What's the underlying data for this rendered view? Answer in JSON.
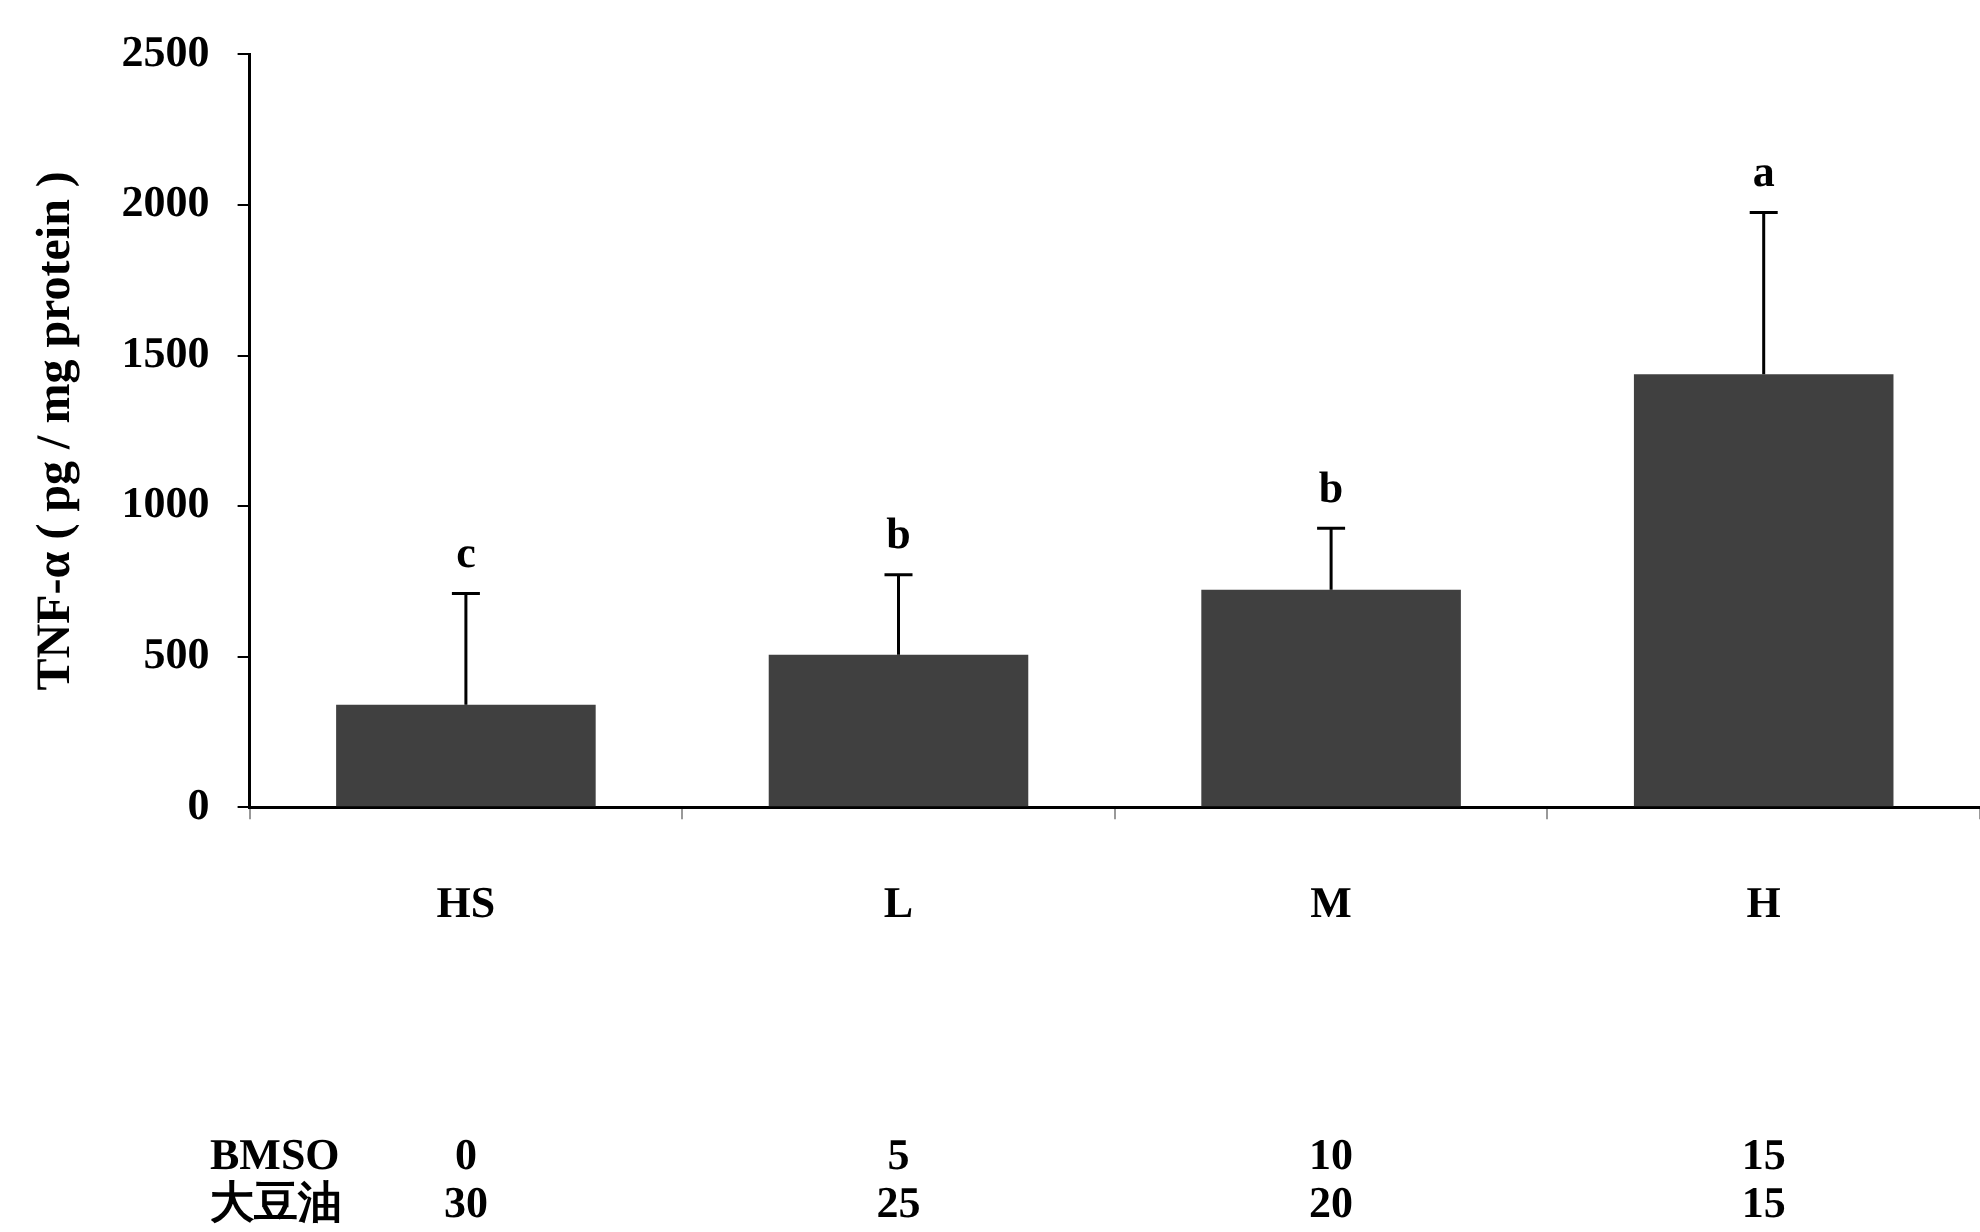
{
  "chart_data": {
    "type": "bar",
    "ylabel": "TNF-α ( pg / mg protein )",
    "categories": [
      "HS",
      "L",
      "M",
      "H"
    ],
    "values": [
      340,
      506,
      722,
      1438
    ],
    "errors": [
      [
        340,
        710
      ],
      [
        506,
        772
      ],
      [
        722,
        926
      ],
      [
        1438,
        1975
      ]
    ],
    "color": "#404040",
    "ylim": [
      0,
      2500
    ],
    "yticks": [
      0,
      500,
      1000,
      1500,
      2000,
      2500
    ],
    "grid": false,
    "legend": false,
    "annotations": [
      "c",
      "b",
      "b",
      "a",
      "BMSO",
      "0",
      "5",
      "10",
      "15",
      "大豆油",
      "30",
      "25",
      "20",
      "15"
    ]
  }
}
